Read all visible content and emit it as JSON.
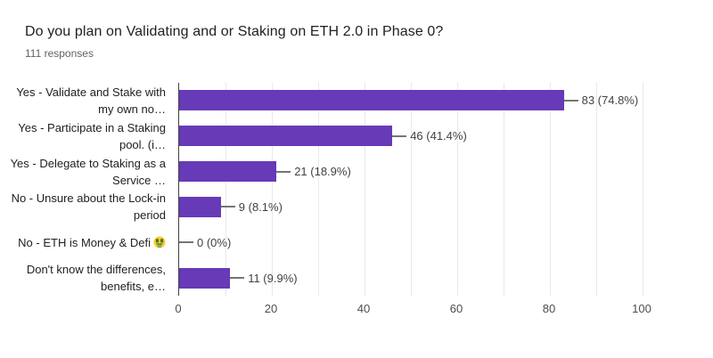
{
  "chart": {
    "title": "Do you plan on Validating and or Staking on ETH 2.0 in Phase 0?",
    "subtitle": "111 responses"
  },
  "chart_data": {
    "type": "bar",
    "orientation": "horizontal",
    "title": "Do you plan on Validating and or Staking on ETH 2.0 in Phase 0?",
    "subtitle": "111 responses",
    "categories": [
      "Yes - Validate and Stake with my own no…",
      "Yes - Participate in a Staking pool. (i…",
      "Yes - Delegate to Staking as a Service …",
      "No - Unsure about the Lock-in period",
      "No - ETH is Money & Defi 🤑",
      "Don't know the differences, benefits, e…"
    ],
    "category_lines": [
      [
        "Yes - Validate and Stake with",
        "my own no…"
      ],
      [
        "Yes - Participate in a Staking",
        "pool. (i…"
      ],
      [
        "Yes - Delegate to Staking as a",
        "Service …"
      ],
      [
        "No - Unsure about the Lock-in",
        "period"
      ],
      [
        "No - ETH is Money & Defi 🤑"
      ],
      [
        "Don't know the differences,",
        "benefits, e…"
      ]
    ],
    "values": [
      83,
      46,
      21,
      9,
      0,
      11
    ],
    "value_labels": [
      "83 (74.8%)",
      "46 (41.4%)",
      "21 (18.9%)",
      "9 (8.1%)",
      "0 (0%)",
      "11 (9.9%)"
    ],
    "percentages": [
      74.8,
      41.4,
      18.9,
      8.1,
      0,
      9.9
    ],
    "xlabel": "",
    "ylabel": "",
    "xlim": [
      0,
      100
    ],
    "xticks": [
      0,
      20,
      40,
      60,
      80,
      100
    ],
    "gridline_step": 10,
    "grid": true,
    "legend": false,
    "bar_color": "#673ab7"
  },
  "icons": {
    "money_mouth_emoji": "🤑"
  }
}
